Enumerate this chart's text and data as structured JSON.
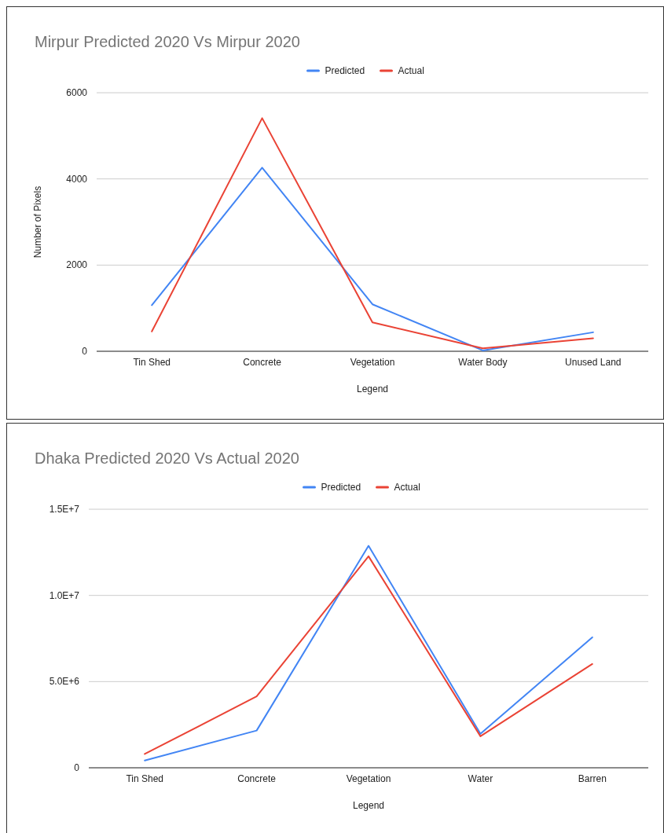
{
  "chart_data": [
    {
      "type": "line",
      "title": "Mirpur Predicted 2020 Vs Mirpur 2020",
      "xlabel": "Legend",
      "ylabel": "Number of Pixels",
      "categories": [
        "Tin Shed",
        "Concrete",
        "Vegetation",
        "Water Body",
        "Unused Land"
      ],
      "series": [
        {
          "name": "Predicted",
          "color": "#4285f4",
          "values": [
            1070,
            4260,
            1090,
            20,
            440
          ]
        },
        {
          "name": "Actual",
          "color": "#ea4335",
          "values": [
            460,
            5410,
            670,
            70,
            300
          ]
        }
      ],
      "ylim": [
        0,
        6000
      ],
      "yticks": [
        0,
        2000,
        4000,
        6000
      ],
      "grid": "y",
      "legend": "top",
      "marker": "none"
    },
    {
      "type": "line",
      "title": "Dhaka Predicted 2020 Vs Actual 2020",
      "xlabel": "Legend",
      "categories": [
        "Tin Shed",
        "Concrete",
        "Vegetation",
        "Water",
        "Barren"
      ],
      "series": [
        {
          "name": "Predicted",
          "color": "#4285f4",
          "values": [
            420000,
            2160000,
            12880000,
            1970000,
            7570000
          ]
        },
        {
          "name": "Actual",
          "color": "#ea4335",
          "values": [
            800000,
            4140000,
            12270000,
            1830000,
            6020000
          ]
        }
      ],
      "ylim": [
        0,
        15000000
      ],
      "yticks": [
        0,
        {
          "value": 5000000,
          "label": "5.0E+6"
        },
        {
          "value": 10000000,
          "label": "1.0E+7"
        },
        {
          "value": 15000000,
          "label": "1.5E+7"
        }
      ],
      "grid": "y",
      "legend": "top",
      "marker": "none"
    }
  ]
}
